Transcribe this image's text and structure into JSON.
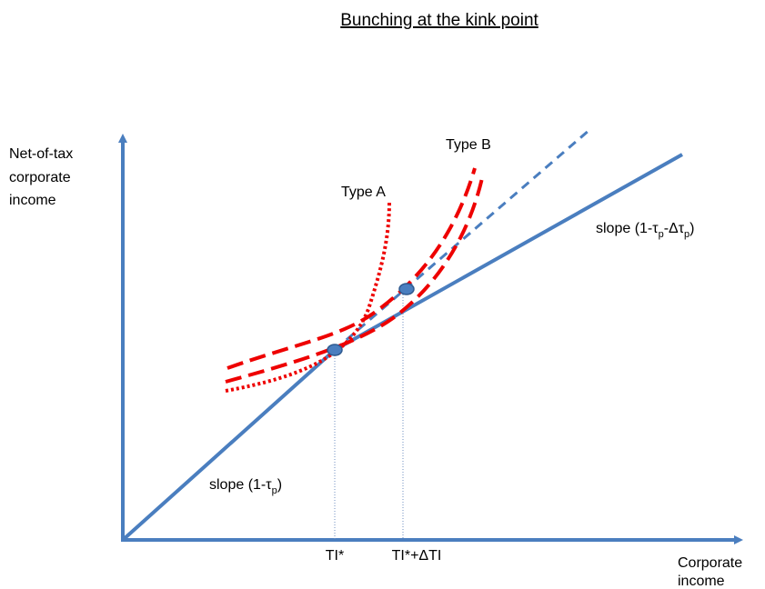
{
  "title": "Bunching at the kink point",
  "y_axis_label": [
    "Net-of-tax",
    "corporate",
    "income"
  ],
  "x_axis_label": [
    "Corporate",
    "income"
  ],
  "type_a": "Type A",
  "type_b": "Type B",
  "slope_low": [
    "slope (1-τ",
    "p",
    ")"
  ],
  "slope_high": [
    "slope (1-τ",
    "p",
    "-Δτ",
    "p",
    ")"
  ],
  "kink_label": "TI*",
  "kink_label_2": "TI*+ΔTI"
}
